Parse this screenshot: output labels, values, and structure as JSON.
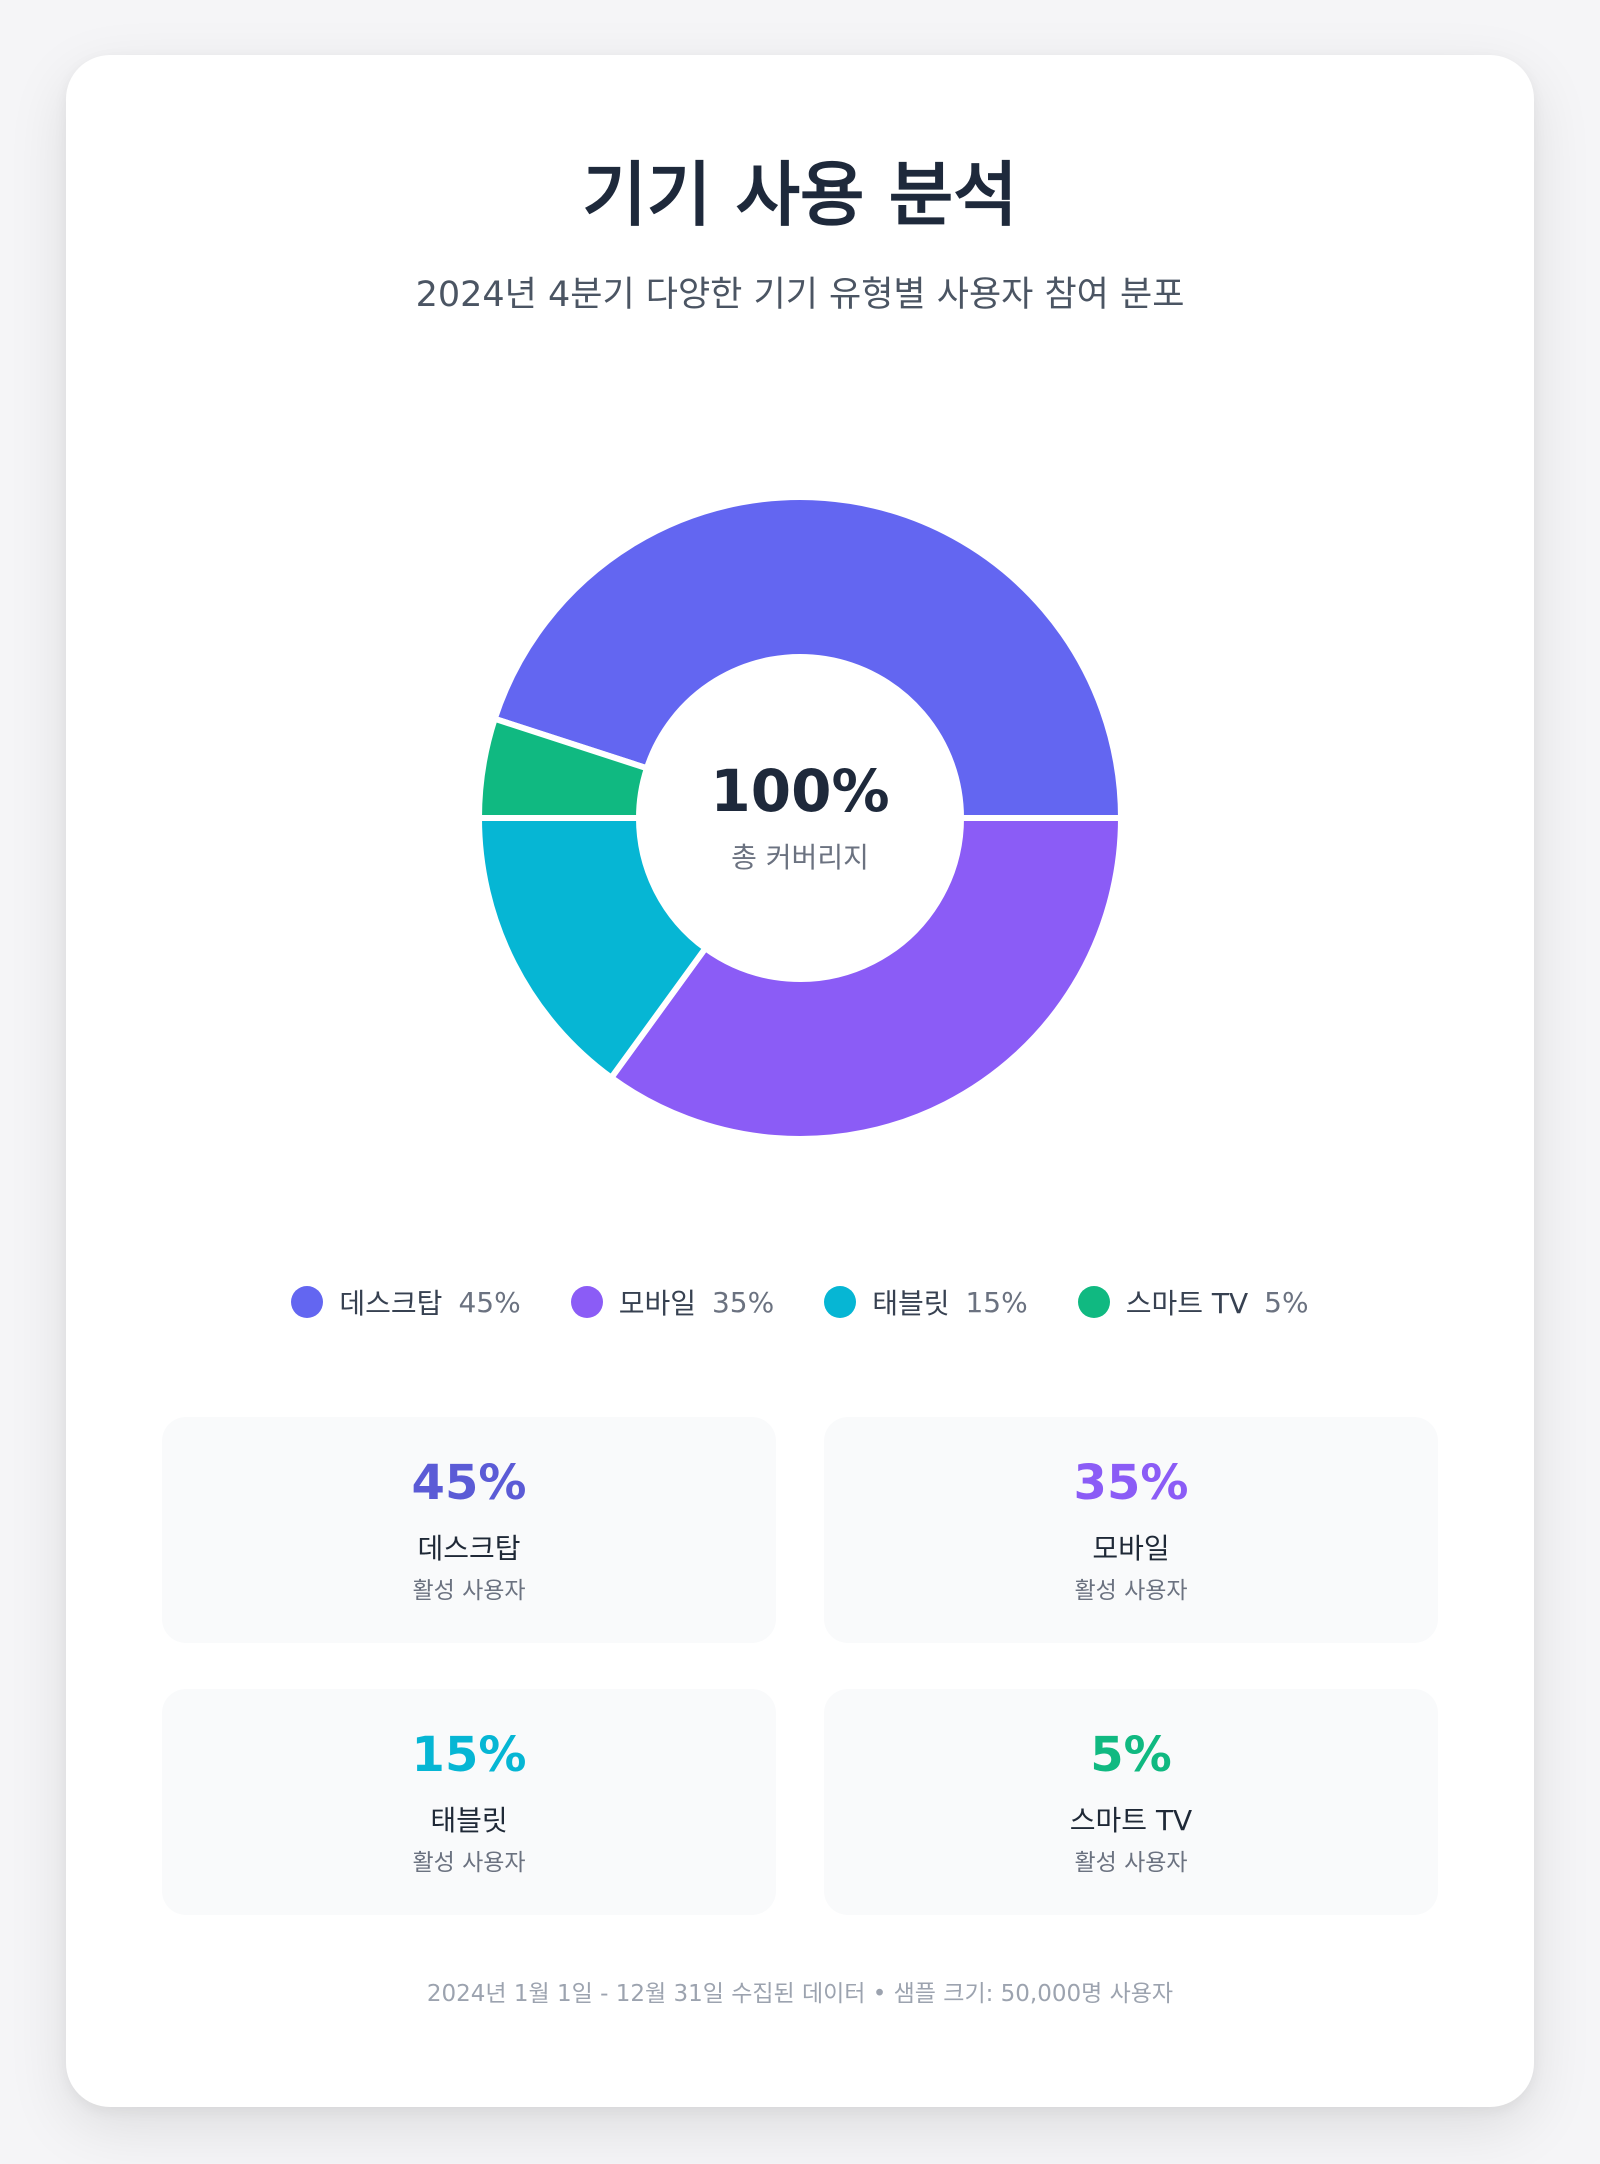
{
  "header": {
    "title": "기기 사용 분석",
    "subtitle": "2024년 4분기 다양한 기기 유형별 사용자 참여 분포"
  },
  "chart_data": {
    "type": "pie",
    "variant": "donut",
    "title": "기기 사용 분석",
    "subtitle": "2024년 4분기 다양한 기기 유형별 사용자 참여 분포",
    "categories": [
      "데스크탑",
      "모바일",
      "태블릿",
      "스마트 TV"
    ],
    "values": [
      45,
      35,
      15,
      5
    ],
    "colors": [
      "#6366f1",
      "#8b5cf6",
      "#06b6d4",
      "#10b981"
    ],
    "center_value": "100%",
    "center_label": "총 커버리지",
    "legend_position": "bottom"
  },
  "legend": [
    {
      "label": "데스크탑",
      "pct": "45%",
      "color": "#6366f1"
    },
    {
      "label": "모바일",
      "pct": "35%",
      "color": "#8b5cf6"
    },
    {
      "label": "태블릿",
      "pct": "15%",
      "color": "#06b6d4"
    },
    {
      "label": "스마트 TV",
      "pct": "5%",
      "color": "#10b981"
    }
  ],
  "stats": [
    {
      "value": "45%",
      "name": "데스크탑",
      "sub": "활성 사용자",
      "color": "#5b5bd6"
    },
    {
      "value": "35%",
      "name": "모바일",
      "sub": "활성 사용자",
      "color": "#8b5cf6"
    },
    {
      "value": "15%",
      "name": "태블릿",
      "sub": "활성 사용자",
      "color": "#06b6d4"
    },
    {
      "value": "5%",
      "name": "스마트 TV",
      "sub": "활성 사용자",
      "color": "#10b981"
    }
  ],
  "footer": "2024년 1월 1일 - 12월 31일 수집된 데이터 • 샘플 크기: 50,000명 사용자"
}
